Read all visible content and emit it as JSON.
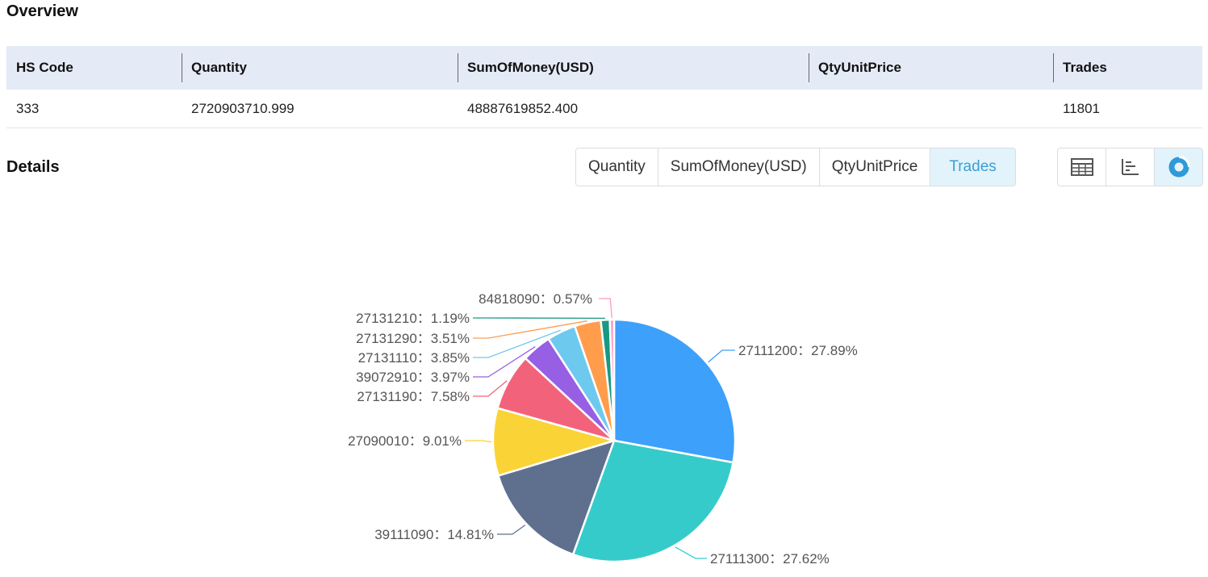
{
  "overview": {
    "title": "Overview",
    "columns": [
      "HS Code",
      "Quantity",
      "SumOfMoney(USD)",
      "QtyUnitPrice",
      "Trades"
    ],
    "row": [
      "333",
      "2720903710.999",
      "48887619852.400",
      "",
      "11801"
    ]
  },
  "details": {
    "title": "Details",
    "metric_tabs": [
      "Quantity",
      "SumOfMoney(USD)",
      "QtyUnitPrice",
      "Trades"
    ],
    "active_metric": "Trades",
    "view_buttons": [
      "table-icon",
      "bar-chart-icon",
      "pie-chart-icon"
    ],
    "active_view": "pie-chart-icon"
  },
  "chart_data": {
    "type": "pie",
    "title": "",
    "label_separator": "：",
    "slices": [
      {
        "name": "27111200",
        "value": 27.89,
        "label": "27.89%",
        "color": "#3da0fb"
      },
      {
        "name": "27111300",
        "value": 27.62,
        "label": "27.62%",
        "color": "#36cbcb"
      },
      {
        "name": "39111090",
        "value": 14.81,
        "label": "14.81%",
        "color": "#5f708f"
      },
      {
        "name": "27090010",
        "value": 9.01,
        "label": "9.01%",
        "color": "#fad337"
      },
      {
        "name": "27131190",
        "value": 7.58,
        "label": "7.58%",
        "color": "#f2637b"
      },
      {
        "name": "39072910",
        "value": 3.97,
        "label": "3.97%",
        "color": "#975fe4"
      },
      {
        "name": "27131110",
        "value": 3.85,
        "label": "3.85%",
        "color": "#6ec9ef"
      },
      {
        "name": "27131290",
        "value": 3.51,
        "label": "3.51%",
        "color": "#ff9d4d"
      },
      {
        "name": "27131210",
        "value": 1.19,
        "label": "1.19%",
        "color": "#199983"
      },
      {
        "name": "84818090",
        "value": 0.57,
        "label": "0.57%",
        "color": "#ff99c3"
      }
    ]
  }
}
